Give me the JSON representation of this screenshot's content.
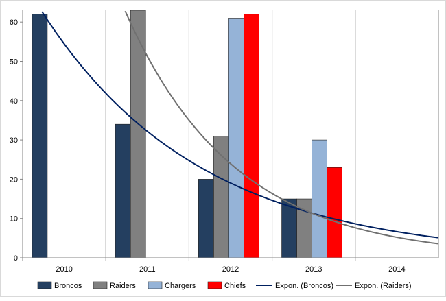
{
  "chart_data": {
    "type": "bar",
    "title": "",
    "xlabel": "",
    "ylabel": "",
    "categories": [
      "2010",
      "2011",
      "2012",
      "2013",
      "2014"
    ],
    "ylim": [
      0,
      63
    ],
    "yticks": [
      0,
      10,
      20,
      30,
      40,
      50,
      60
    ],
    "grid": "vertical",
    "legend_position": "bottom",
    "series": [
      {
        "name": "Broncos",
        "color": "#243f60",
        "values": [
          62,
          34,
          20,
          15,
          null
        ]
      },
      {
        "name": "Raiders",
        "color": "#808080",
        "values": [
          null,
          63,
          31,
          15,
          null
        ]
      },
      {
        "name": "Chargers",
        "color": "#95b3d7",
        "values": [
          null,
          null,
          61,
          30,
          null
        ]
      },
      {
        "name": "Chiefs",
        "color": "#ff0000",
        "values": [
          null,
          null,
          62,
          23,
          null
        ]
      }
    ],
    "trendlines": [
      {
        "name": "Expon. (Broncos)",
        "color": "#002060",
        "a": 92.1,
        "b": -0.5256
      },
      {
        "name": "Expon. (Raiders)",
        "color": "#707070",
        "a": 235.0,
        "b": -0.7613
      }
    ]
  }
}
